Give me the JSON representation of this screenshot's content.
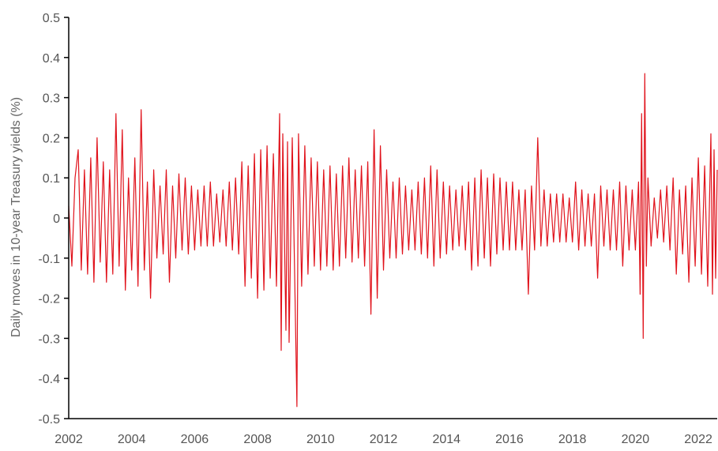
{
  "chart_data": {
    "type": "line",
    "title": "",
    "xlabel": "",
    "ylabel": "Daily moves in 10-year Treasury yields (%)",
    "xlim": [
      2002,
      2022.6
    ],
    "ylim": [
      -0.5,
      0.5
    ],
    "x_ticks": [
      "2002",
      "2004",
      "2006",
      "2008",
      "2010",
      "2012",
      "2014",
      "2016",
      "2018",
      "2020",
      "2022"
    ],
    "y_ticks": [
      "0.5",
      "0.4",
      "0.3",
      "0.2",
      "0.1",
      "0",
      "-0.1",
      "-0.2",
      "-0.3",
      "-0.4",
      "-0.5"
    ],
    "grid": false,
    "color": "#e0121b",
    "series": [
      {
        "name": "",
        "points": [
          [
            2002.0,
            0.03
          ],
          [
            2002.1,
            -0.12
          ],
          [
            2002.2,
            0.1
          ],
          [
            2002.3,
            0.17
          ],
          [
            2002.4,
            -0.13
          ],
          [
            2002.5,
            0.12
          ],
          [
            2002.6,
            -0.14
          ],
          [
            2002.7,
            0.15
          ],
          [
            2002.8,
            -0.16
          ],
          [
            2002.9,
            0.2
          ],
          [
            2003.0,
            -0.11
          ],
          [
            2003.1,
            0.14
          ],
          [
            2003.2,
            -0.16
          ],
          [
            2003.3,
            0.12
          ],
          [
            2003.4,
            -0.14
          ],
          [
            2003.5,
            0.26
          ],
          [
            2003.6,
            -0.12
          ],
          [
            2003.7,
            0.22
          ],
          [
            2003.8,
            -0.18
          ],
          [
            2003.9,
            0.1
          ],
          [
            2004.0,
            -0.13
          ],
          [
            2004.1,
            0.15
          ],
          [
            2004.2,
            -0.17
          ],
          [
            2004.3,
            0.27
          ],
          [
            2004.4,
            -0.13
          ],
          [
            2004.5,
            0.09
          ],
          [
            2004.6,
            -0.2
          ],
          [
            2004.7,
            0.12
          ],
          [
            2004.8,
            -0.1
          ],
          [
            2004.9,
            0.08
          ],
          [
            2005.0,
            -0.09
          ],
          [
            2005.1,
            0.12
          ],
          [
            2005.2,
            -0.16
          ],
          [
            2005.3,
            0.08
          ],
          [
            2005.4,
            -0.1
          ],
          [
            2005.5,
            0.11
          ],
          [
            2005.6,
            -0.08
          ],
          [
            2005.7,
            0.1
          ],
          [
            2005.8,
            -0.09
          ],
          [
            2005.9,
            0.08
          ],
          [
            2006.0,
            -0.08
          ],
          [
            2006.1,
            0.07
          ],
          [
            2006.2,
            -0.07
          ],
          [
            2006.3,
            0.08
          ],
          [
            2006.4,
            -0.07
          ],
          [
            2006.5,
            0.09
          ],
          [
            2006.6,
            -0.07
          ],
          [
            2006.7,
            0.06
          ],
          [
            2006.8,
            -0.06
          ],
          [
            2006.9,
            0.07
          ],
          [
            2007.0,
            -0.07
          ],
          [
            2007.1,
            0.09
          ],
          [
            2007.2,
            -0.08
          ],
          [
            2007.3,
            0.1
          ],
          [
            2007.4,
            -0.09
          ],
          [
            2007.5,
            0.14
          ],
          [
            2007.6,
            -0.17
          ],
          [
            2007.7,
            0.13
          ],
          [
            2007.8,
            -0.15
          ],
          [
            2007.9,
            0.16
          ],
          [
            2008.0,
            -0.2
          ],
          [
            2008.1,
            0.17
          ],
          [
            2008.2,
            -0.18
          ],
          [
            2008.3,
            0.18
          ],
          [
            2008.4,
            -0.15
          ],
          [
            2008.5,
            0.16
          ],
          [
            2008.6,
            -0.17
          ],
          [
            2008.7,
            0.26
          ],
          [
            2008.75,
            -0.33
          ],
          [
            2008.8,
            0.21
          ],
          [
            2008.9,
            -0.28
          ],
          [
            2008.95,
            0.19
          ],
          [
            2009.0,
            -0.31
          ],
          [
            2009.1,
            0.2
          ],
          [
            2009.2,
            -0.25
          ],
          [
            2009.25,
            -0.47
          ],
          [
            2009.3,
            0.21
          ],
          [
            2009.4,
            -0.17
          ],
          [
            2009.5,
            0.18
          ],
          [
            2009.6,
            -0.14
          ],
          [
            2009.7,
            0.15
          ],
          [
            2009.8,
            -0.12
          ],
          [
            2009.9,
            0.14
          ],
          [
            2010.0,
            -0.13
          ],
          [
            2010.1,
            0.12
          ],
          [
            2010.2,
            -0.12
          ],
          [
            2010.3,
            0.13
          ],
          [
            2010.4,
            -0.13
          ],
          [
            2010.5,
            0.11
          ],
          [
            2010.6,
            -0.12
          ],
          [
            2010.7,
            0.13
          ],
          [
            2010.8,
            -0.1
          ],
          [
            2010.9,
            0.15
          ],
          [
            2011.0,
            -0.11
          ],
          [
            2011.1,
            0.12
          ],
          [
            2011.2,
            -0.1
          ],
          [
            2011.3,
            0.13
          ],
          [
            2011.4,
            -0.12
          ],
          [
            2011.5,
            0.14
          ],
          [
            2011.6,
            -0.24
          ],
          [
            2011.7,
            0.22
          ],
          [
            2011.8,
            -0.2
          ],
          [
            2011.9,
            0.18
          ],
          [
            2012.0,
            -0.13
          ],
          [
            2012.1,
            0.12
          ],
          [
            2012.2,
            -0.1
          ],
          [
            2012.3,
            0.09
          ],
          [
            2012.4,
            -0.1
          ],
          [
            2012.5,
            0.1
          ],
          [
            2012.6,
            -0.09
          ],
          [
            2012.7,
            0.08
          ],
          [
            2012.8,
            -0.08
          ],
          [
            2012.9,
            0.07
          ],
          [
            2013.0,
            -0.08
          ],
          [
            2013.1,
            0.09
          ],
          [
            2013.2,
            -0.09
          ],
          [
            2013.3,
            0.1
          ],
          [
            2013.4,
            -0.1
          ],
          [
            2013.5,
            0.13
          ],
          [
            2013.6,
            -0.12
          ],
          [
            2013.7,
            0.12
          ],
          [
            2013.8,
            -0.1
          ],
          [
            2013.9,
            0.09
          ],
          [
            2014.0,
            -0.09
          ],
          [
            2014.1,
            0.08
          ],
          [
            2014.2,
            -0.08
          ],
          [
            2014.3,
            0.07
          ],
          [
            2014.4,
            -0.07
          ],
          [
            2014.5,
            0.08
          ],
          [
            2014.6,
            -0.08
          ],
          [
            2014.7,
            0.09
          ],
          [
            2014.8,
            -0.13
          ],
          [
            2014.9,
            0.1
          ],
          [
            2015.0,
            -0.12
          ],
          [
            2015.1,
            0.12
          ],
          [
            2015.2,
            -0.1
          ],
          [
            2015.3,
            0.1
          ],
          [
            2015.4,
            -0.12
          ],
          [
            2015.5,
            0.11
          ],
          [
            2015.6,
            -0.09
          ],
          [
            2015.7,
            0.1
          ],
          [
            2015.8,
            -0.08
          ],
          [
            2015.9,
            0.09
          ],
          [
            2016.0,
            -0.08
          ],
          [
            2016.1,
            0.09
          ],
          [
            2016.2,
            -0.08
          ],
          [
            2016.3,
            0.07
          ],
          [
            2016.4,
            -0.08
          ],
          [
            2016.5,
            0.07
          ],
          [
            2016.6,
            -0.19
          ],
          [
            2016.7,
            0.08
          ],
          [
            2016.8,
            -0.08
          ],
          [
            2016.9,
            0.2
          ],
          [
            2017.0,
            -0.07
          ],
          [
            2017.1,
            0.07
          ],
          [
            2017.2,
            -0.07
          ],
          [
            2017.3,
            0.06
          ],
          [
            2017.4,
            -0.06
          ],
          [
            2017.5,
            0.06
          ],
          [
            2017.6,
            -0.06
          ],
          [
            2017.7,
            0.06
          ],
          [
            2017.8,
            -0.06
          ],
          [
            2017.9,
            0.05
          ],
          [
            2018.0,
            -0.06
          ],
          [
            2018.1,
            0.09
          ],
          [
            2018.2,
            -0.08
          ],
          [
            2018.3,
            0.07
          ],
          [
            2018.4,
            -0.07
          ],
          [
            2018.5,
            0.06
          ],
          [
            2018.6,
            -0.07
          ],
          [
            2018.7,
            0.06
          ],
          [
            2018.8,
            -0.15
          ],
          [
            2018.9,
            0.08
          ],
          [
            2019.0,
            -0.07
          ],
          [
            2019.1,
            0.07
          ],
          [
            2019.2,
            -0.08
          ],
          [
            2019.3,
            0.07
          ],
          [
            2019.4,
            -0.08
          ],
          [
            2019.5,
            0.09
          ],
          [
            2019.6,
            -0.12
          ],
          [
            2019.7,
            0.08
          ],
          [
            2019.8,
            -0.08
          ],
          [
            2019.9,
            0.07
          ],
          [
            2020.0,
            -0.08
          ],
          [
            2020.1,
            0.09
          ],
          [
            2020.15,
            -0.19
          ],
          [
            2020.2,
            0.26
          ],
          [
            2020.25,
            -0.3
          ],
          [
            2020.3,
            0.36
          ],
          [
            2020.35,
            -0.12
          ],
          [
            2020.4,
            0.1
          ],
          [
            2020.5,
            -0.07
          ],
          [
            2020.6,
            0.05
          ],
          [
            2020.7,
            -0.05
          ],
          [
            2020.8,
            0.07
          ],
          [
            2020.9,
            -0.06
          ],
          [
            2021.0,
            0.08
          ],
          [
            2021.1,
            -0.08
          ],
          [
            2021.2,
            0.1
          ],
          [
            2021.3,
            -0.14
          ],
          [
            2021.4,
            0.07
          ],
          [
            2021.5,
            -0.09
          ],
          [
            2021.6,
            0.08
          ],
          [
            2021.7,
            -0.16
          ],
          [
            2021.8,
            0.1
          ],
          [
            2021.9,
            -0.12
          ],
          [
            2022.0,
            0.15
          ],
          [
            2022.1,
            -0.14
          ],
          [
            2022.2,
            0.13
          ],
          [
            2022.3,
            -0.17
          ],
          [
            2022.4,
            0.21
          ],
          [
            2022.45,
            -0.19
          ],
          [
            2022.5,
            0.17
          ],
          [
            2022.55,
            -0.15
          ],
          [
            2022.6,
            0.12
          ]
        ]
      }
    ]
  }
}
